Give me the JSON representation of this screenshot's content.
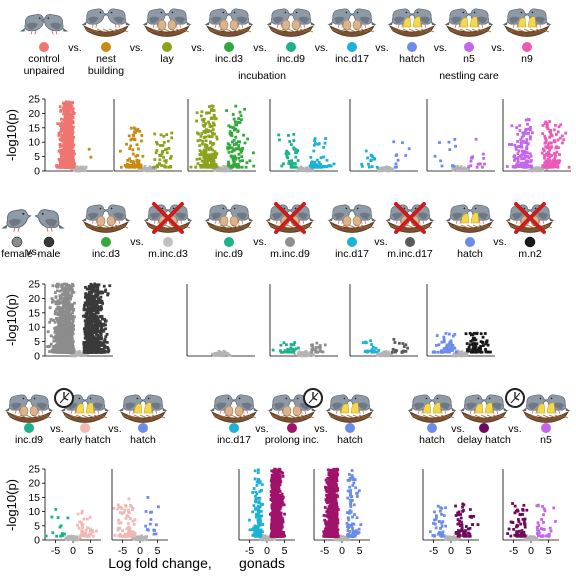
{
  "colors": {
    "control": "#F07470",
    "bldg": "#C98A12",
    "lay": "#8AA21C",
    "inc.d3": "#2FAA3A",
    "inc.d9": "#1CB28C",
    "inc.d17": "#1CB1D9",
    "hatch": "#6B8CEB",
    "n5": "#C466EB",
    "n9": "#EB5AB8",
    "female": "#8C8C8C",
    "male": "#3A3A3A",
    "m.inc.d3": "#C0C0C0",
    "m.inc.d9": "#8F8F8F",
    "m.inc.d17": "#5A5A5A",
    "m.n2": "#1A1A1A",
    "early": "#F2B8B4",
    "prolong": "#A0136B",
    "delay": "#6E0A5E",
    "ns": "#B5B5B5"
  },
  "rows": [
    {
      "stages": [
        {
          "label": [
            "control",
            "unpaired"
          ],
          "color": "control",
          "icon": "pair"
        },
        {
          "label": [
            "nest",
            "building"
          ],
          "color": "bldg",
          "icon": "nest"
        },
        {
          "label": [
            "lay"
          ],
          "color": "lay",
          "icon": "eggs"
        },
        {
          "label": [
            "inc.d3"
          ],
          "color": "inc.d3",
          "icon": "eggs"
        },
        {
          "label": [
            "inc.d9"
          ],
          "color": "inc.d9",
          "icon": "eggs"
        },
        {
          "label": [
            "inc.d17"
          ],
          "color": "inc.d17",
          "icon": "eggs"
        },
        {
          "label": [
            "hatch"
          ],
          "color": "hatch",
          "icon": "chicks"
        },
        {
          "label": [
            "n5"
          ],
          "color": "n5",
          "icon": "chicks"
        },
        {
          "label": [
            "n9"
          ],
          "color": "n9",
          "icon": "chicks"
        }
      ],
      "groups": [
        "incubation",
        "nestling care"
      ]
    },
    {
      "stages": [
        {
          "label": [
            "female"
          ],
          "color": "female",
          "icon": "single"
        },
        {
          "label": [
            "male"
          ],
          "color": "male",
          "icon": "single"
        },
        {
          "label": [
            "inc.d3"
          ],
          "color": "inc.d3",
          "icon": "eggs"
        },
        {
          "label": [
            "m.inc.d3"
          ],
          "color": "m.inc.d3",
          "icon": "cross"
        },
        {
          "label": [
            "inc.d9"
          ],
          "color": "inc.d9",
          "icon": "eggs"
        },
        {
          "label": [
            "m.inc.d9"
          ],
          "color": "m.inc.d9",
          "icon": "cross"
        },
        {
          "label": [
            "inc.d17"
          ],
          "color": "inc.d17",
          "icon": "eggs"
        },
        {
          "label": [
            "m.inc.d17"
          ],
          "color": "m.inc.d17",
          "icon": "cross"
        },
        {
          "label": [
            "hatch"
          ],
          "color": "hatch",
          "icon": "chicks"
        },
        {
          "label": [
            "m.n2"
          ],
          "color": "m.n2",
          "icon": "cross"
        }
      ]
    },
    {
      "stages": [
        {
          "label": [
            "inc.d9"
          ],
          "color": "inc.d9",
          "icon": "eggs"
        },
        {
          "label": [
            "early hatch"
          ],
          "color": "early",
          "icon": "chicks"
        },
        {
          "label": [
            "hatch"
          ],
          "color": "hatch",
          "icon": "chicks"
        },
        {
          "label": [
            "inc.d17"
          ],
          "color": "inc.d17",
          "icon": "eggs"
        },
        {
          "label": [
            "prolong inc."
          ],
          "color": "prolong",
          "icon": "eggs"
        },
        {
          "label": [
            "hatch"
          ],
          "color": "hatch",
          "icon": "chicks"
        },
        {
          "label": [
            "hatch"
          ],
          "color": "hatch",
          "icon": "chicks"
        },
        {
          "label": [
            "delay hatch"
          ],
          "color": "delay",
          "icon": "chicks"
        },
        {
          "label": [
            "n5"
          ],
          "color": "n5",
          "icon": "chicks"
        }
      ]
    }
  ],
  "vs_label": "vs.",
  "chart_data": {
    "type": "scatter",
    "ylabel": "-log10(p)",
    "xlabel": [
      "Log fold change,",
      "gonads"
    ],
    "xlim": [
      -8,
      8
    ],
    "ylim": [
      0,
      25
    ],
    "yticks": [
      0,
      5,
      10,
      15,
      20,
      25
    ],
    "xticks": [
      -5,
      0,
      5
    ],
    "panels": [
      {
        "row": 0,
        "comparison": "control vs. nest building",
        "left": "control",
        "right": "bldg",
        "n_left": 1500,
        "n_right": 2,
        "spread": 4,
        "max_y": 24
      },
      {
        "row": 0,
        "comparison": "nest building vs. lay",
        "left": "bldg",
        "right": "lay",
        "n_left": 70,
        "n_right": 45,
        "spread": 6.5,
        "max_y": 15
      },
      {
        "row": 0,
        "comparison": "lay vs. inc.d3",
        "left": "lay",
        "right": "inc.d3",
        "n_left": 200,
        "n_right": 110,
        "spread": 6.5,
        "max_y": 23
      },
      {
        "row": 0,
        "comparison": "inc.d3 vs. inc.d9",
        "left": "inc.d3",
        "right": "inc.d9",
        "n_left": 0,
        "n_right": 0,
        "spread": 4,
        "max_y": 0
      },
      {
        "row": 0,
        "comparison": "inc.d9 vs. inc.d17",
        "left": "inc.d9",
        "right": "inc.d17",
        "n_left": 40,
        "n_right": 45,
        "spread": 7,
        "max_y": 13
      },
      {
        "row": 0,
        "comparison": "inc.d17 vs. hatch",
        "left": "inc.d17",
        "right": "hatch",
        "n_left": 15,
        "n_right": 10,
        "spread": 7.5,
        "max_y": 11
      },
      {
        "row": 0,
        "comparison": "hatch vs. n5",
        "left": "hatch",
        "right": "n5",
        "n_left": 10,
        "n_right": 15,
        "spread": 7.5,
        "max_y": 13
      },
      {
        "row": 0,
        "comparison": "n5 vs. n9",
        "left": "n5",
        "right": "n9",
        "n_left": 120,
        "n_right": 140,
        "spread": 7,
        "max_y": 18
      },
      {
        "row": 1,
        "comparison": "female vs. male",
        "left": "female",
        "right": "male",
        "n_left": 1800,
        "n_right": 1800,
        "spread": 7,
        "max_y": 25
      },
      {
        "row": 1,
        "comparison": "inc.d3 vs. m.inc.d3",
        "left": "inc.d3",
        "right": "m.inc.d3",
        "n_left": 0,
        "n_right": 0,
        "spread": 4,
        "max_y": 0
      },
      {
        "row": 1,
        "comparison": "inc.d9 vs. m.inc.d9",
        "left": "inc.d9",
        "right": "m.inc.d9",
        "n_left": 30,
        "n_right": 20,
        "spread": 7,
        "max_y": 5
      },
      {
        "row": 1,
        "comparison": "inc.d17 vs. m.inc.d17",
        "left": "inc.d17",
        "right": "m.inc.d17",
        "n_left": 20,
        "n_right": 20,
        "spread": 7,
        "max_y": 6
      },
      {
        "row": 1,
        "comparison": "hatch vs. m.n2",
        "left": "hatch",
        "right": "m.n2",
        "n_left": 60,
        "n_right": 70,
        "spread": 7,
        "max_y": 8
      },
      {
        "row": 1,
        "comparison": "m.inc.d3 vs. m.inc.d9",
        "left": "m.inc.d3",
        "right": "m.inc.d9",
        "n_left": 0,
        "n_right": 0,
        "spread": 4,
        "max_y": 0
      },
      {
        "row": 2,
        "comparison": "inc.d9 vs. early hatch",
        "left": "inc.d9",
        "right": "early",
        "n_left": 15,
        "n_right": 40,
        "spread": 7,
        "max_y": 11
      },
      {
        "row": 2,
        "comparison": "early hatch vs. hatch",
        "left": "early",
        "right": "hatch",
        "n_left": 90,
        "n_right": 15,
        "spread": 7.5,
        "max_y": 15
      },
      {
        "row": 2,
        "comparison": "inc.d17 vs. prolong inc.",
        "left": "inc.d17",
        "right": "prolong",
        "n_left": 120,
        "n_right": 900,
        "spread": 4,
        "max_y": 25
      },
      {
        "row": 2,
        "comparison": "prolong inc. vs. hatch",
        "left": "prolong",
        "right": "hatch",
        "n_left": 900,
        "n_right": 100,
        "spread": 4,
        "max_y": 25
      },
      {
        "row": 2,
        "comparison": "hatch vs. delay hatch",
        "left": "hatch",
        "right": "delay",
        "n_left": 40,
        "n_right": 60,
        "spread": 7,
        "max_y": 13
      },
      {
        "row": 2,
        "comparison": "delay hatch vs. n5",
        "left": "delay",
        "right": "n5",
        "n_left": 60,
        "n_right": 35,
        "spread": 7,
        "max_y": 13
      }
    ]
  }
}
